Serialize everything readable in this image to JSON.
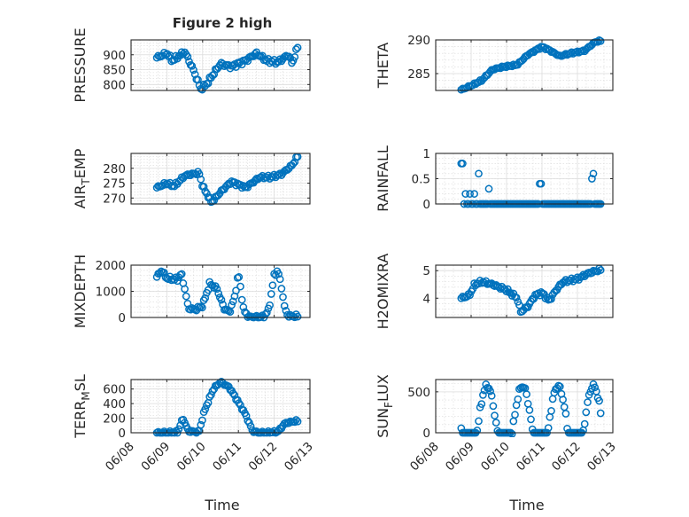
{
  "figure": {
    "title": "Figure 2 high"
  },
  "time_axis": {
    "label": "Time",
    "ticks": [
      "06/08",
      "06/09",
      "06/10",
      "06/11",
      "06/12",
      "06/13"
    ]
  },
  "colors": {
    "marker": "#0072bd",
    "text": "#262626"
  },
  "chart_data": [
    {
      "type": "scatter",
      "ylabel": "PRESSURE",
      "ylim": [
        780,
        950
      ],
      "yticks": [
        800,
        850,
        900
      ],
      "ytick_labels": [
        "800",
        "850",
        "900"
      ],
      "xlim": [
        "06/08",
        "06/13"
      ],
      "grid": true,
      "title": "Figure 2 high",
      "series": [
        {
          "x": [],
          "y": []
        }
      ]
    },
    {
      "type": "scatter",
      "ylabel": "THETA",
      "ylim": [
        282.5,
        290
      ],
      "yticks": [
        285,
        290
      ],
      "ytick_labels": [
        "285",
        "290"
      ],
      "xlim": [
        "06/08",
        "06/13"
      ],
      "grid": true,
      "series": [
        {
          "x": [],
          "y": []
        }
      ]
    },
    {
      "type": "scatter",
      "ylabel": "AIR_TEMP",
      "ylim": [
        268,
        285
      ],
      "yticks": [
        270,
        275,
        280
      ],
      "ytick_labels": [
        "270",
        "275",
        "280"
      ],
      "xlim": [
        "06/08",
        "06/13"
      ],
      "grid": true,
      "series": [
        {
          "x": [],
          "y": []
        }
      ]
    },
    {
      "type": "scatter",
      "ylabel": "RAINFALL",
      "ylim": [
        0,
        1
      ],
      "yticks": [
        0,
        0.5,
        1
      ],
      "ytick_labels": [
        "0",
        "0.5",
        "1"
      ],
      "xlim": [
        "06/08",
        "06/13"
      ],
      "grid": true,
      "series": [
        {
          "x": [],
          "y": []
        }
      ]
    },
    {
      "type": "scatter",
      "ylabel": "MIXDEPTH",
      "ylim": [
        0,
        2000
      ],
      "yticks": [
        0,
        1000,
        2000
      ],
      "ytick_labels": [
        "0",
        "1000",
        "2000"
      ],
      "xlim": [
        "06/08",
        "06/13"
      ],
      "grid": true,
      "series": [
        {
          "x": [],
          "y": []
        }
      ]
    },
    {
      "type": "scatter",
      "ylabel": "H2OMIXRA",
      "ylim": [
        3.3,
        5.2
      ],
      "yticks": [
        4,
        5
      ],
      "ytick_labels": [
        "4",
        "5"
      ],
      "xlim": [
        "06/08",
        "06/13"
      ],
      "grid": true,
      "series": [
        {
          "x": [],
          "y": []
        }
      ]
    },
    {
      "type": "scatter",
      "ylabel": "TERR_MSL",
      "ylim": [
        0,
        730
      ],
      "yticks": [
        0,
        200,
        400,
        600
      ],
      "ytick_labels": [
        "0",
        "200",
        "400",
        "600"
      ],
      "xlim": [
        "06/08",
        "06/13"
      ],
      "grid": true,
      "series": [
        {
          "x": [],
          "y": []
        }
      ]
    },
    {
      "type": "scatter",
      "ylabel": "SUN_FLUX",
      "ylim": [
        0,
        650
      ],
      "yticks": [
        0,
        500
      ],
      "ytick_labels": [
        "0",
        "500"
      ],
      "xlim": [
        "06/08",
        "06/13"
      ],
      "grid": true,
      "series": [
        {
          "x": [],
          "y": []
        }
      ]
    }
  ]
}
